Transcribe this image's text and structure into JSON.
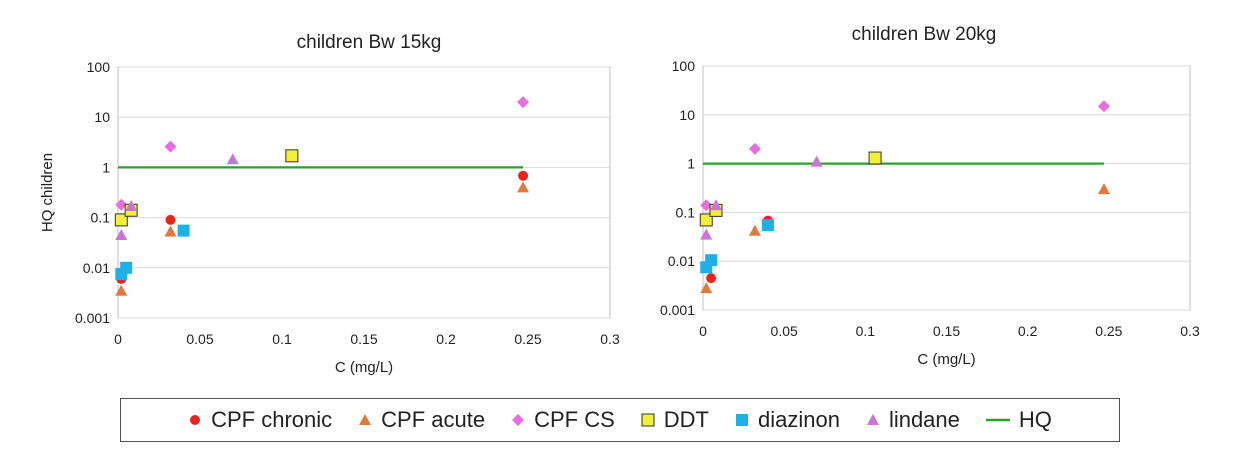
{
  "chart_data": [
    {
      "type": "scatter",
      "title": "children Bw 15kg",
      "xlabel": "C (mg/L)",
      "ylabel": "HQ children",
      "xlim": [
        0,
        0.3
      ],
      "ylim": [
        0.001,
        100
      ],
      "yscale": "log",
      "grid": "horizontal",
      "x_tick_labels": [
        "0",
        "0.05",
        "0.1",
        "0.15",
        "0.2",
        "0.25",
        "0.3"
      ],
      "y_tick_labels": [
        "0.001",
        "0.01",
        "0.1",
        "1",
        "10",
        "100"
      ],
      "series": [
        {
          "name": "CPF chronic",
          "marker": "circle",
          "color": "#e8241e",
          "points": [
            {
              "x": 0.002,
              "y": 0.006
            },
            {
              "x": 0.032,
              "y": 0.09
            },
            {
              "x": 0.247,
              "y": 0.68
            }
          ]
        },
        {
          "name": "CPF acute",
          "marker": "triangle",
          "color": "#e07a3c",
          "points": [
            {
              "x": 0.002,
              "y": 0.0035
            },
            {
              "x": 0.032,
              "y": 0.053
            },
            {
              "x": 0.247,
              "y": 0.4
            }
          ]
        },
        {
          "name": "CPF CS",
          "marker": "diamond",
          "color": "#e86de0",
          "points": [
            {
              "x": 0.002,
              "y": 0.18
            },
            {
              "x": 0.032,
              "y": 2.6
            },
            {
              "x": 0.247,
              "y": 20
            }
          ]
        },
        {
          "name": "DDT",
          "marker": "square-outline",
          "color": "#f2ef3a",
          "points": [
            {
              "x": 0.002,
              "y": 0.09
            },
            {
              "x": 0.008,
              "y": 0.14
            },
            {
              "x": 0.106,
              "y": 1.7
            }
          ]
        },
        {
          "name": "diazinon",
          "marker": "square",
          "color": "#1fb0e8",
          "points": [
            {
              "x": 0.002,
              "y": 0.0075
            },
            {
              "x": 0.005,
              "y": 0.01
            },
            {
              "x": 0.04,
              "y": 0.055
            }
          ]
        },
        {
          "name": "lindane",
          "marker": "triangle",
          "color": "#c875d6",
          "points": [
            {
              "x": 0.002,
              "y": 0.045
            },
            {
              "x": 0.008,
              "y": 0.17
            },
            {
              "x": 0.07,
              "y": 1.45
            }
          ]
        },
        {
          "name": "HQ",
          "marker": "line",
          "color": "#2ca02c",
          "points": [
            {
              "x": 0,
              "y": 1
            },
            {
              "x": 0.247,
              "y": 1
            }
          ]
        }
      ]
    },
    {
      "type": "scatter",
      "title": "children Bw 20kg",
      "xlabel": "C (mg/L)",
      "ylabel": "",
      "xlim": [
        0,
        0.3
      ],
      "ylim": [
        0.001,
        100
      ],
      "yscale": "log",
      "grid": "horizontal",
      "x_tick_labels": [
        "0",
        "0.05",
        "0.1",
        "0.15",
        "0.2",
        "0.25",
        "0.3"
      ],
      "y_tick_labels": [
        "0.001",
        "0.01",
        "0.1",
        "1",
        "10",
        "100"
      ],
      "series": [
        {
          "name": "CPF chronic",
          "marker": "circle",
          "color": "#e8241e",
          "points": [
            {
              "x": 0.005,
              "y": 0.0045
            },
            {
              "x": 0.04,
              "y": 0.068
            }
          ]
        },
        {
          "name": "CPF acute",
          "marker": "triangle",
          "color": "#e07a3c",
          "points": [
            {
              "x": 0.002,
              "y": 0.0028
            },
            {
              "x": 0.032,
              "y": 0.042
            },
            {
              "x": 0.247,
              "y": 0.3
            }
          ]
        },
        {
          "name": "CPF CS",
          "marker": "diamond",
          "color": "#e86de0",
          "points": [
            {
              "x": 0.002,
              "y": 0.14
            },
            {
              "x": 0.032,
              "y": 2.0
            },
            {
              "x": 0.247,
              "y": 15
            }
          ]
        },
        {
          "name": "DDT",
          "marker": "square-outline",
          "color": "#f2ef3a",
          "points": [
            {
              "x": 0.002,
              "y": 0.07
            },
            {
              "x": 0.008,
              "y": 0.11
            },
            {
              "x": 0.106,
              "y": 1.3
            }
          ]
        },
        {
          "name": "diazinon",
          "marker": "square",
          "color": "#1fb0e8",
          "points": [
            {
              "x": 0.002,
              "y": 0.0075
            },
            {
              "x": 0.005,
              "y": 0.0105
            },
            {
              "x": 0.04,
              "y": 0.055
            }
          ]
        },
        {
          "name": "lindane",
          "marker": "triangle",
          "color": "#c875d6",
          "points": [
            {
              "x": 0.002,
              "y": 0.035
            },
            {
              "x": 0.008,
              "y": 0.14
            },
            {
              "x": 0.07,
              "y": 1.1
            }
          ]
        },
        {
          "name": "HQ",
          "marker": "line",
          "color": "#2ca02c",
          "points": [
            {
              "x": 0,
              "y": 1
            },
            {
              "x": 0.247,
              "y": 1
            }
          ]
        }
      ]
    }
  ],
  "legend": {
    "placement": "bottom",
    "items": [
      {
        "label": "CPF chronic",
        "marker": "circle",
        "color": "#e8241e"
      },
      {
        "label": "CPF acute",
        "marker": "triangle",
        "color": "#e07a3c"
      },
      {
        "label": "CPF CS",
        "marker": "diamond",
        "color": "#e86de0"
      },
      {
        "label": "DDT",
        "marker": "square-outline",
        "color": "#f2ef3a"
      },
      {
        "label": "diazinon",
        "marker": "square",
        "color": "#1fb0e8"
      },
      {
        "label": "lindane",
        "marker": "triangle",
        "color": "#c875d6"
      },
      {
        "label": "HQ",
        "marker": "line",
        "color": "#2ca02c"
      }
    ]
  }
}
